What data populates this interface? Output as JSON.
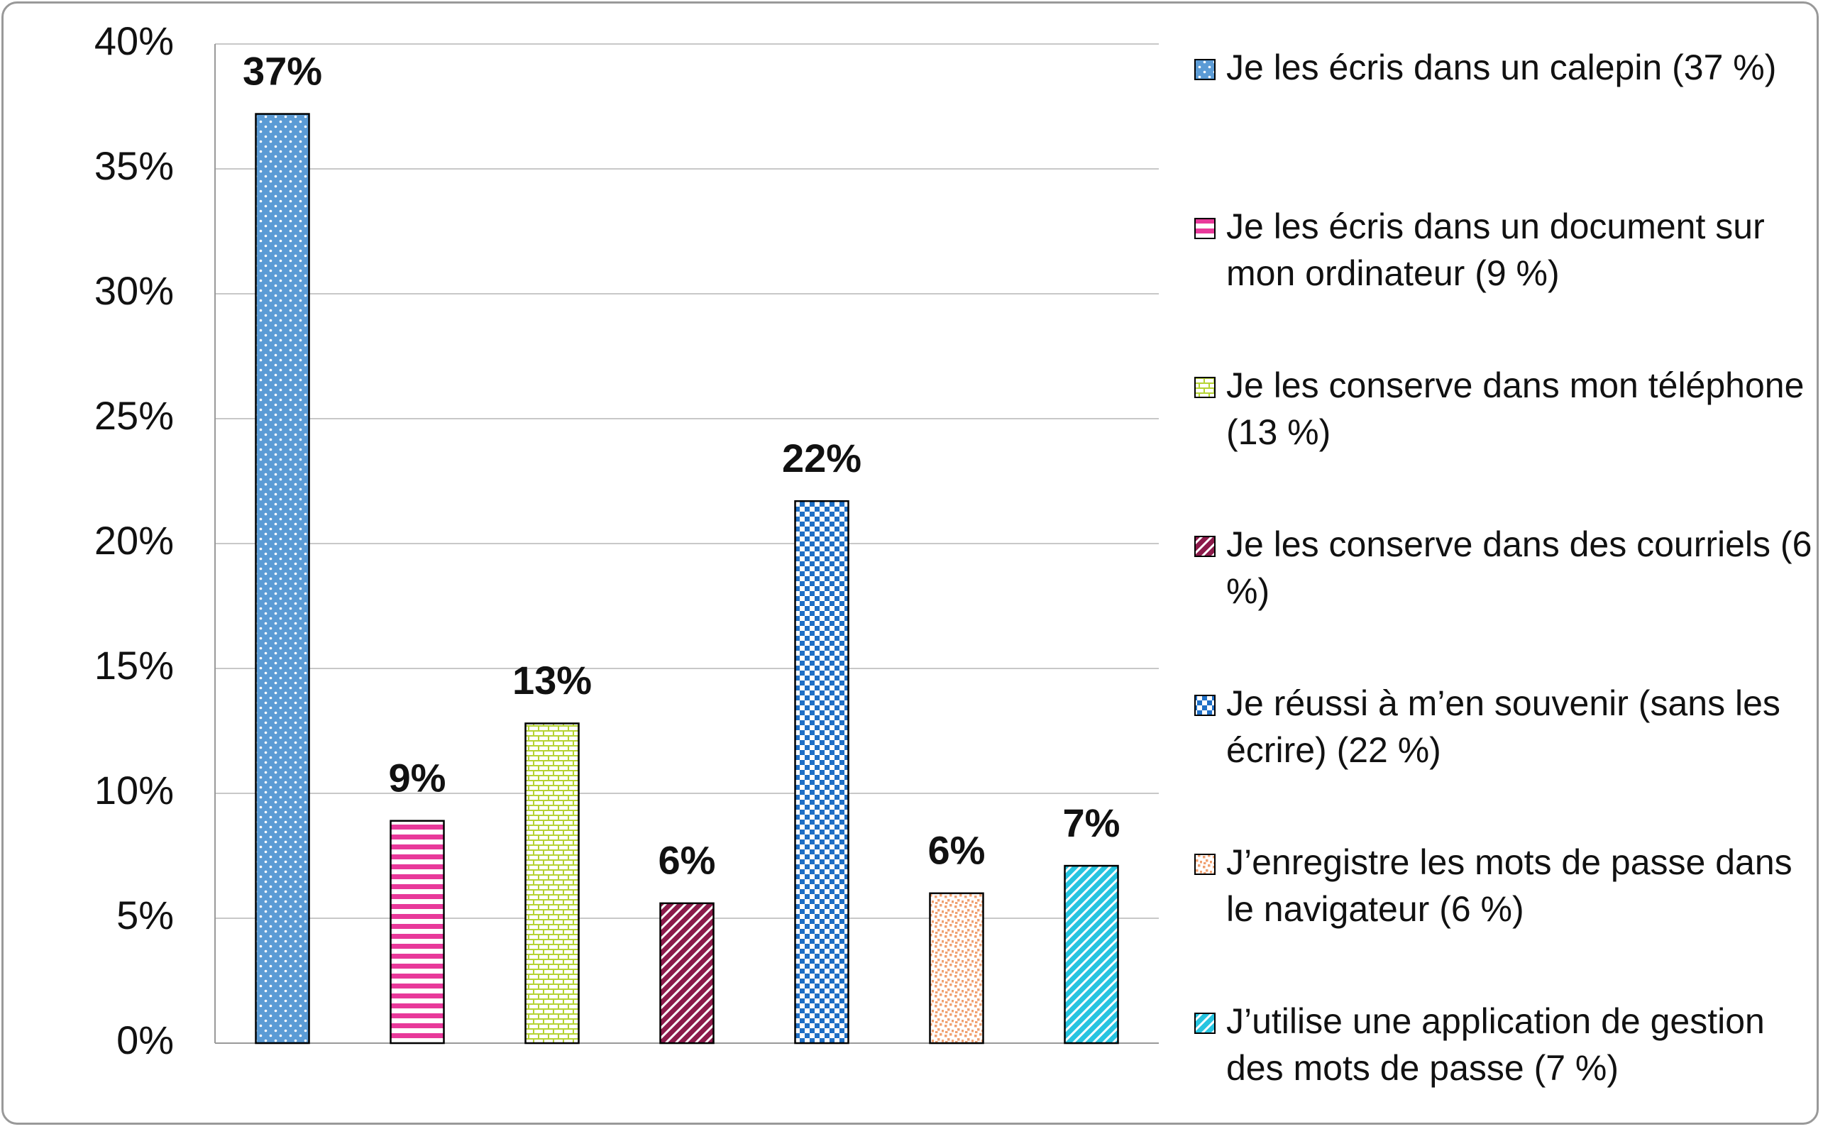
{
  "chart_data": {
    "type": "bar",
    "ylim": [
      0,
      40
    ],
    "yticks": [
      {
        "value": 0,
        "label": "0%"
      },
      {
        "value": 5,
        "label": "5%"
      },
      {
        "value": 10,
        "label": "10%"
      },
      {
        "value": 15,
        "label": "15%"
      },
      {
        "value": 20,
        "label": "20%"
      },
      {
        "value": 25,
        "label": "25%"
      },
      {
        "value": 30,
        "label": "30%"
      },
      {
        "value": 35,
        "label": "35%"
      },
      {
        "value": 40,
        "label": "40%"
      }
    ],
    "grid": true,
    "legend": "right",
    "series": [
      {
        "name": "Je les écris dans un calepin (37 %)",
        "color": "#5b9bd5",
        "pattern": "dots",
        "values": [
          37.2
        ],
        "value_labels": [
          "37%"
        ]
      },
      {
        "name": "Je les écris dans un document sur mon ordinateur (9 %)",
        "color": "#e8399a",
        "pattern": "hlines",
        "values": [
          8.9
        ],
        "value_labels": [
          "9%"
        ]
      },
      {
        "name": "Je les conserve dans mon téléphone (13 %)",
        "color": "#b5d334",
        "pattern": "bricks",
        "values": [
          12.8
        ],
        "value_labels": [
          "13%"
        ]
      },
      {
        "name": "Je les conserve dans des courriels (6 %)",
        "color": "#8b1a4a",
        "pattern": "diagonal",
        "values": [
          5.6
        ],
        "value_labels": [
          "6%"
        ]
      },
      {
        "name": "Je réussi à m’en souvenir (sans les écrire) (22 %)",
        "color": "#1f6fc5",
        "pattern": "checker",
        "values": [
          21.7
        ],
        "value_labels": [
          "22%"
        ]
      },
      {
        "name": "J’enregistre les mots de passe dans le navigateur (6 %)",
        "color": "#f0a070",
        "pattern": "confetti",
        "values": [
          6.0
        ],
        "value_labels": [
          "6%"
        ]
      },
      {
        "name": "J’utilise une application de gestion des mots de passe (7 %)",
        "color": "#27c4e0",
        "pattern": "diagonal",
        "values": [
          7.1
        ],
        "value_labels": [
          "7%"
        ]
      }
    ]
  }
}
